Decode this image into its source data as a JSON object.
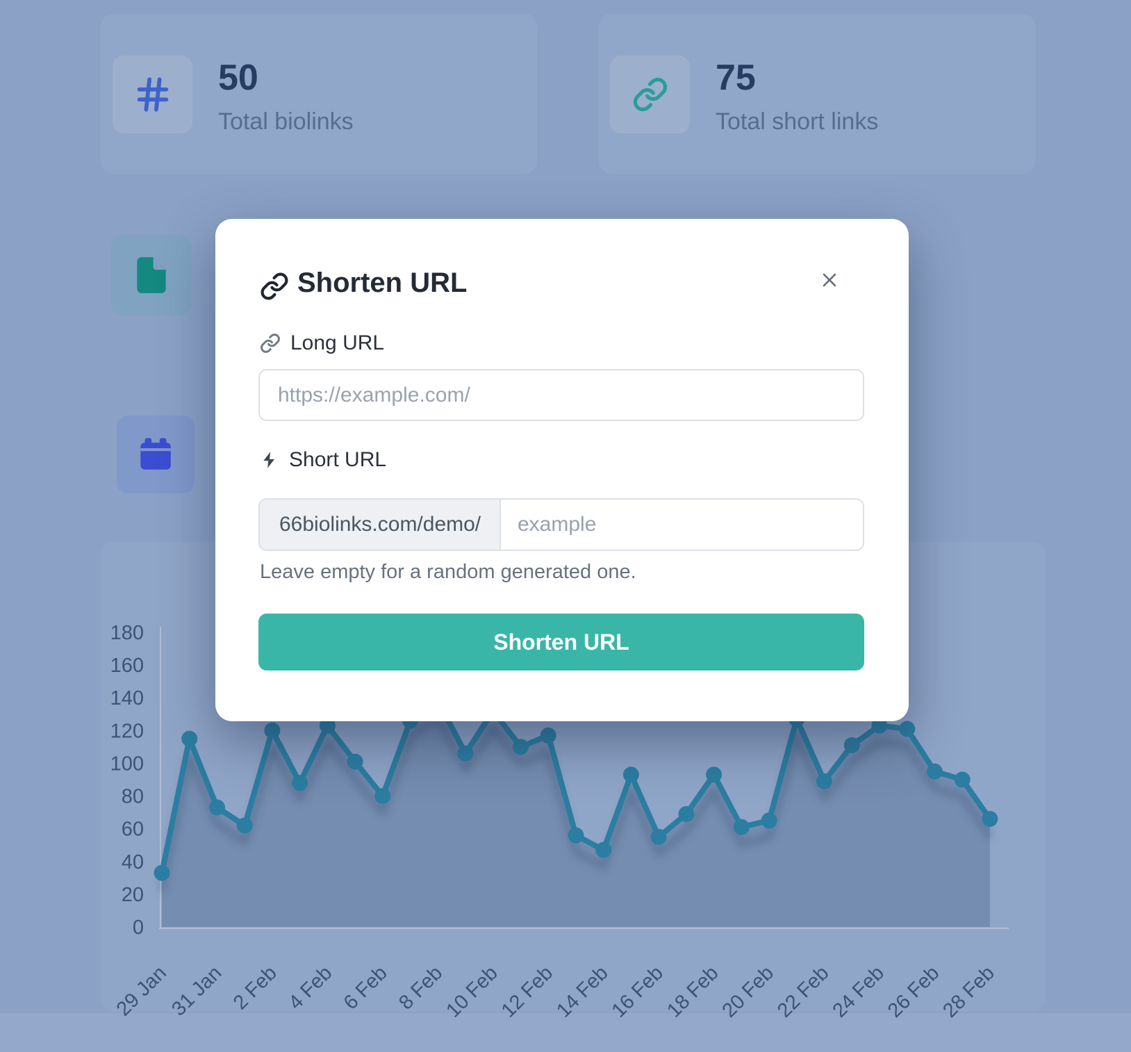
{
  "theme": {
    "backdrop": "#8ba2c6",
    "accent": "#3ab6a8",
    "modal_bg": "#ffffff"
  },
  "stats": [
    {
      "icon": "hash-icon",
      "icon_color": "#3c63cb",
      "value": "50",
      "label": "Total biolinks"
    },
    {
      "icon": "link-icon",
      "icon_color": "#2b9d97",
      "value": "75",
      "label": "Total short links"
    }
  ],
  "side_tiles": [
    {
      "icon": "file-icon",
      "icon_color": "#13897f"
    },
    {
      "icon": "calendar-icon",
      "icon_color": "#3a4ed1"
    }
  ],
  "modal": {
    "title": "Shorten URL",
    "long_url": {
      "label": "Long URL",
      "value": "",
      "placeholder": "https://example.com/"
    },
    "short_url": {
      "label": "Short URL",
      "prefix": "66biolinks.com/demo/",
      "value": "",
      "placeholder": "example",
      "helper": "Leave empty for a random generated one."
    },
    "submit_label": "Shorten URL"
  },
  "chart_data": {
    "type": "area",
    "title": "",
    "xlabel": "",
    "ylabel": "",
    "categories": [
      "29 Jan",
      "30 Jan",
      "31 Jan",
      "1 Feb",
      "2 Feb",
      "3 Feb",
      "4 Feb",
      "5 Feb",
      "6 Feb",
      "7 Feb",
      "8 Feb",
      "9 Feb",
      "10 Feb",
      "11 Feb",
      "12 Feb",
      "13 Feb",
      "14 Feb",
      "15 Feb",
      "16 Feb",
      "17 Feb",
      "18 Feb",
      "19 Feb",
      "20 Feb",
      "21 Feb",
      "22 Feb",
      "23 Feb",
      "24 Feb",
      "25 Feb",
      "26 Feb",
      "27 Feb",
      "28 Feb"
    ],
    "values": [
      33,
      115,
      73,
      62,
      120,
      88,
      123,
      101,
      80,
      126,
      138,
      106,
      132,
      110,
      117,
      56,
      47,
      93,
      55,
      69,
      93,
      61,
      65,
      127,
      89,
      111,
      123,
      121,
      95,
      90,
      66
    ],
    "xticks": [
      "29 Jan",
      "31 Jan",
      "2 Feb",
      "4 Feb",
      "6 Feb",
      "8 Feb",
      "10 Feb",
      "12 Feb",
      "14 Feb",
      "16 Feb",
      "18 Feb",
      "20 Feb",
      "22 Feb",
      "24 Feb",
      "26 Feb",
      "28 Feb"
    ],
    "yticks": [
      0,
      20,
      40,
      60,
      80,
      100,
      120,
      140,
      160,
      180
    ],
    "ylim": [
      0,
      180
    ],
    "grid": false,
    "legend": false,
    "line_color": "#2b7ea1",
    "marker_color": "#2b7ea1",
    "area_fill": "rgba(23,56,92,0.22)",
    "label_color": "#3d5276",
    "axis_color": "rgba(255,255,255,0.28)"
  }
}
